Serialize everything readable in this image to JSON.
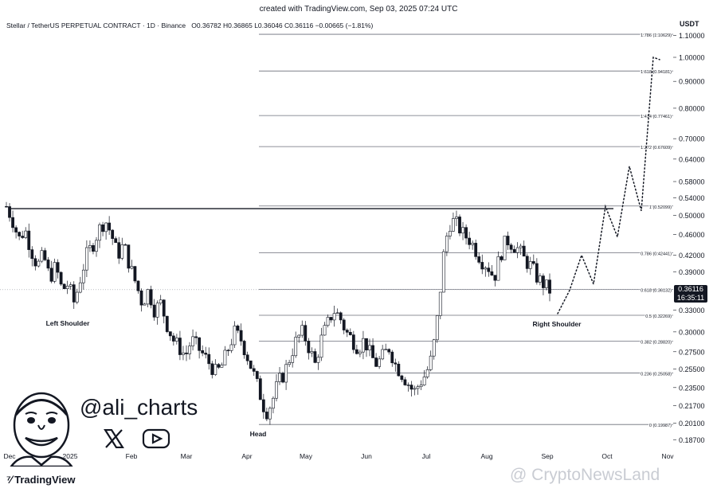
{
  "header": {
    "created": "created with TradingView.com, Sep 03, 2025 07:24 UTC",
    "symbol": "Stellar / TetherUS PERPETUAL CONTRACT · 1D · Binance",
    "ohlc": "O0.36782  H0.36865  L0.36046  C0.36116  −0.00665 (−1.81%)",
    "currency": "USDT"
  },
  "price_box": {
    "price": "0.36116",
    "countdown": "16:35:11"
  },
  "branding": {
    "handle": "@ali_charts",
    "x_icon": "x-logo-icon",
    "youtube_icon": "youtube-icon",
    "tradingview": "TradingView",
    "watermark": "@ CryptoNewsLand"
  },
  "colors": {
    "candle": "#131722",
    "line": "#131722",
    "fib": "#6a6d78",
    "background": "#ffffff"
  },
  "chart_data": {
    "type": "candlestick",
    "title": "",
    "xlabel": "",
    "ylabel": "",
    "scale": "log",
    "y_ticks": [
      "1.10000",
      "1.00000",
      "0.90000",
      "0.80000",
      "0.70000",
      "0.64000",
      "0.58000",
      "0.54000",
      "0.50000",
      "0.46000",
      "0.42000",
      "0.39000",
      "0.33000",
      "0.30000",
      "0.27500",
      "0.25500",
      "0.23500",
      "0.21700",
      "0.20100",
      "0.18700"
    ],
    "x_ticks": [
      "Dec",
      "2025",
      "Feb",
      "Mar",
      "Apr",
      "May",
      "Jun",
      "Jul",
      "Aug",
      "Sep",
      "Oct",
      "Nov"
    ],
    "fib_levels": [
      {
        "label": "0 (0.19987)",
        "value": 0.19987
      },
      {
        "label": "0.236 (0.25058)",
        "value": 0.25058
      },
      {
        "label": "0.382 (0.28820)",
        "value": 0.2882
      },
      {
        "label": "0.5 (0.32269)",
        "value": 0.32269
      },
      {
        "label": "0.618 (0.36132)",
        "value": 0.36132
      },
      {
        "label": "0.786 (0.42441)",
        "value": 0.42441
      },
      {
        "label": "1 (0.52099)",
        "value": 0.52099
      },
      {
        "label": "1.272 (0.67609)",
        "value": 0.67609
      },
      {
        "label": "1.414 (0.77461)",
        "value": 0.77461
      },
      {
        "label": "1.618 (0.94181)",
        "value": 0.94181
      },
      {
        "label": "1.786 (1.10629)",
        "value": 1.10629
      }
    ],
    "neckline": 0.515,
    "annotations": [
      {
        "text": "Left Shoulder"
      },
      {
        "text": "Head"
      },
      {
        "text": "Right Shoulder"
      }
    ],
    "close_series": [
      0.52,
      0.49,
      0.45,
      0.47,
      0.43,
      0.4,
      0.42,
      0.38,
      0.4,
      0.36,
      0.37,
      0.34,
      0.38,
      0.42,
      0.44,
      0.47,
      0.49,
      0.46,
      0.42,
      0.44,
      0.4,
      0.37,
      0.34,
      0.36,
      0.33,
      0.34,
      0.31,
      0.29,
      0.28,
      0.27,
      0.29,
      0.28,
      0.27,
      0.26,
      0.25,
      0.26,
      0.28,
      0.3,
      0.29,
      0.27,
      0.25,
      0.23,
      0.21,
      0.22,
      0.24,
      0.25,
      0.27,
      0.29,
      0.3,
      0.28,
      0.26,
      0.29,
      0.31,
      0.33,
      0.32,
      0.3,
      0.29,
      0.28,
      0.29,
      0.27,
      0.26,
      0.27,
      0.28,
      0.26,
      0.25,
      0.24,
      0.23,
      0.24,
      0.25,
      0.27,
      0.33,
      0.44,
      0.49,
      0.48,
      0.46,
      0.45,
      0.43,
      0.41,
      0.4,
      0.38,
      0.42,
      0.45,
      0.44,
      0.43,
      0.41,
      0.4,
      0.38,
      0.37,
      0.36
    ],
    "projection": [
      0.325,
      0.36,
      0.42,
      0.37,
      0.52,
      0.455,
      0.62,
      0.51,
      1.0,
      0.99
    ]
  }
}
